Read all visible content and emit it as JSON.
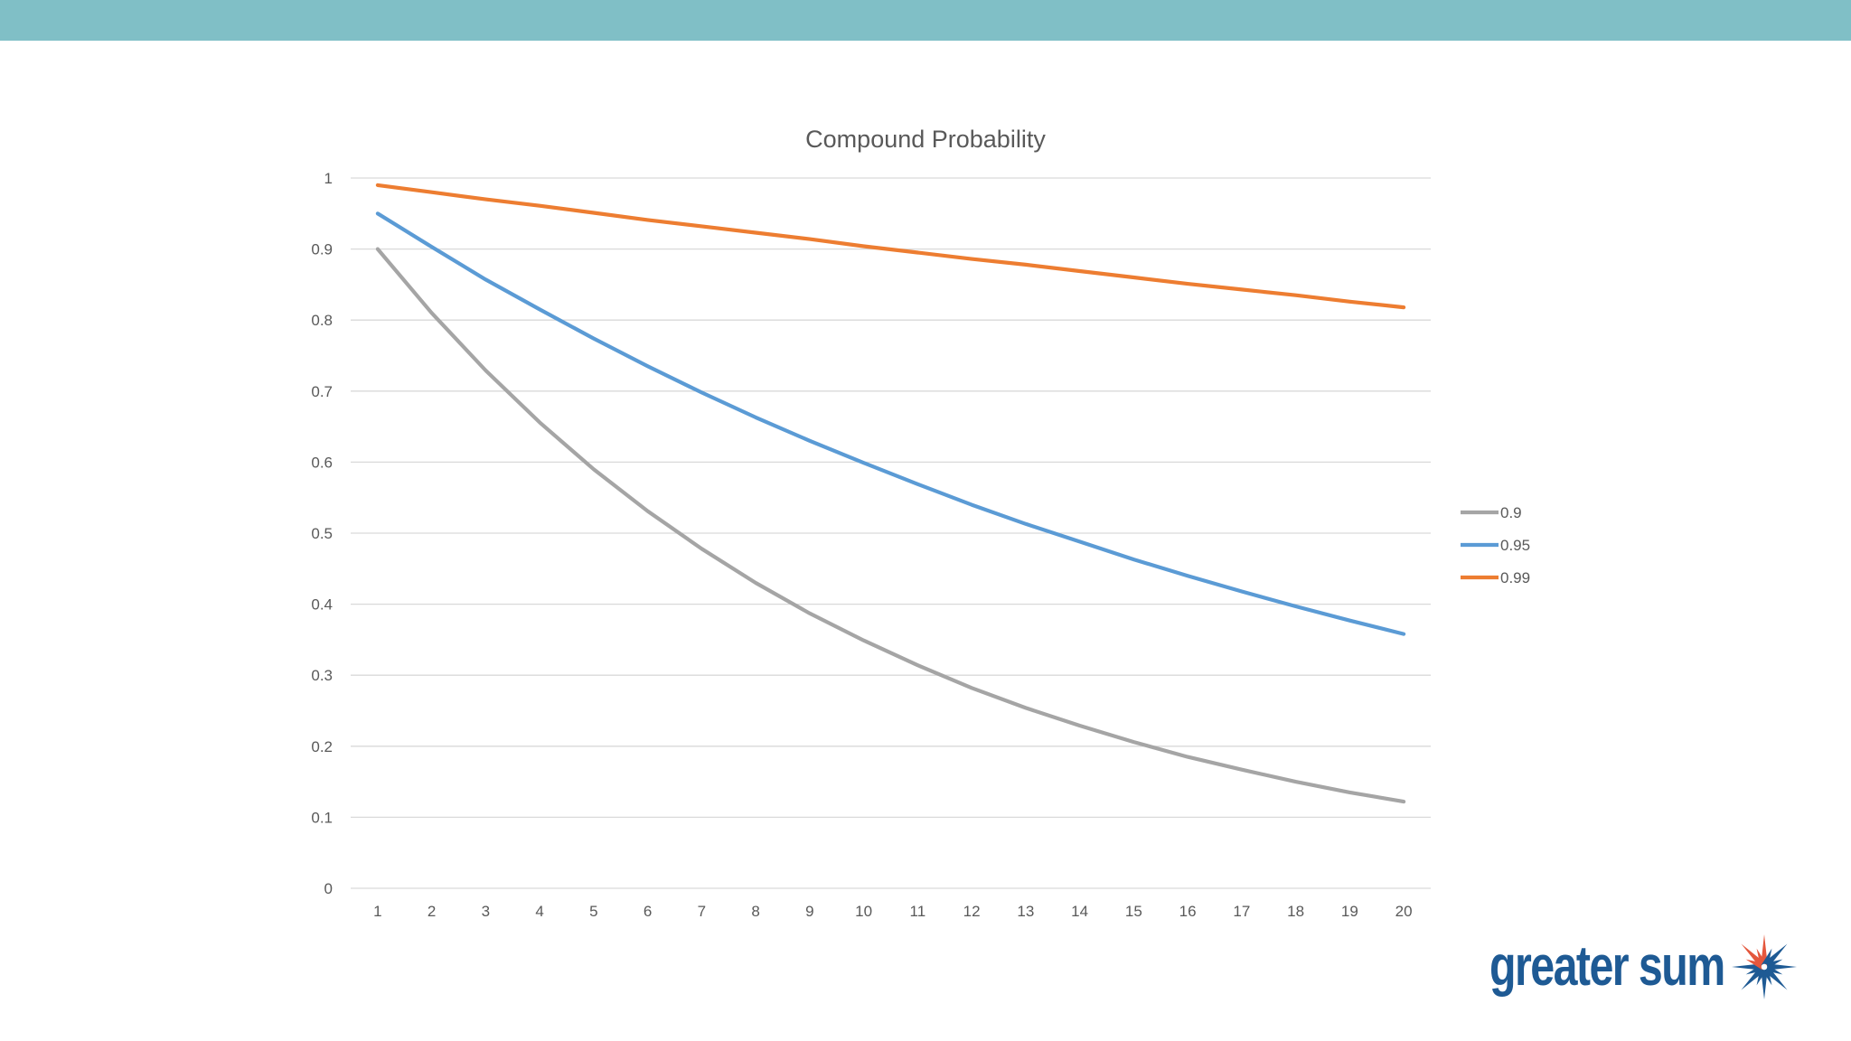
{
  "colors": {
    "top_bar": "#80BFC6",
    "gridline": "#D9D9D9",
    "text": "#595959",
    "series": [
      "#A5A5A5",
      "#5B9BD5",
      "#ED7D31"
    ],
    "logo_text": "#1E5A94",
    "logo_mark_blue": "#1E5A94",
    "logo_mark_orange": "#E4573D"
  },
  "logo": {
    "text": "greater sum",
    "icon": "starburst-icon"
  },
  "chart_data": {
    "type": "line",
    "title": "Compound Probability",
    "xlabel": "",
    "ylabel": "",
    "x": [
      1,
      2,
      3,
      4,
      5,
      6,
      7,
      8,
      9,
      10,
      11,
      12,
      13,
      14,
      15,
      16,
      17,
      18,
      19,
      20
    ],
    "ylim": [
      0,
      1
    ],
    "yticks": [
      "0",
      "0.1",
      "0.2",
      "0.3",
      "0.4",
      "0.5",
      "0.6",
      "0.7",
      "0.8",
      "0.9",
      "1"
    ],
    "grid": true,
    "legend_position": "right",
    "series": [
      {
        "name": "0.9",
        "values": [
          0.9,
          0.81,
          0.729,
          0.656,
          0.59,
          0.531,
          0.478,
          0.43,
          0.387,
          0.349,
          0.314,
          0.282,
          0.254,
          0.229,
          0.206,
          0.185,
          0.167,
          0.15,
          0.135,
          0.122
        ]
      },
      {
        "name": "0.95",
        "values": [
          0.95,
          0.903,
          0.857,
          0.815,
          0.774,
          0.735,
          0.698,
          0.663,
          0.63,
          0.599,
          0.569,
          0.54,
          0.513,
          0.488,
          0.463,
          0.44,
          0.418,
          0.397,
          0.377,
          0.358
        ]
      },
      {
        "name": "0.99",
        "values": [
          0.99,
          0.98,
          0.97,
          0.961,
          0.951,
          0.941,
          0.932,
          0.923,
          0.914,
          0.904,
          0.895,
          0.886,
          0.878,
          0.869,
          0.86,
          0.851,
          0.843,
          0.835,
          0.826,
          0.818
        ]
      }
    ]
  }
}
